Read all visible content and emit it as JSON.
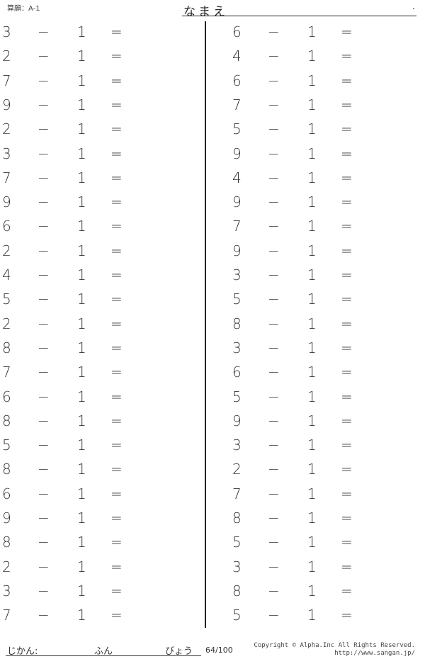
{
  "header": {
    "code": "算願：A-1",
    "name_label": "なまえ",
    "name_dot": "."
  },
  "operator": "−",
  "subtrahend": "1",
  "equals": "=",
  "left_column": [
    3,
    2,
    7,
    9,
    2,
    3,
    7,
    9,
    6,
    2,
    4,
    5,
    2,
    8,
    7,
    6,
    8,
    5,
    8,
    6,
    9,
    8,
    2,
    3,
    7
  ],
  "right_column": [
    6,
    4,
    6,
    7,
    5,
    9,
    4,
    9,
    7,
    9,
    3,
    5,
    8,
    3,
    6,
    5,
    9,
    3,
    2,
    7,
    8,
    5,
    3,
    8,
    5
  ],
  "footer": {
    "time_label": "じかん:",
    "minutes_label": "ふん",
    "seconds_label": "びょう",
    "score": "64/100",
    "copyright": "Copyright © Alpha.Inc All Rights Reserved.",
    "url": "http://www.sangan.jp/"
  }
}
